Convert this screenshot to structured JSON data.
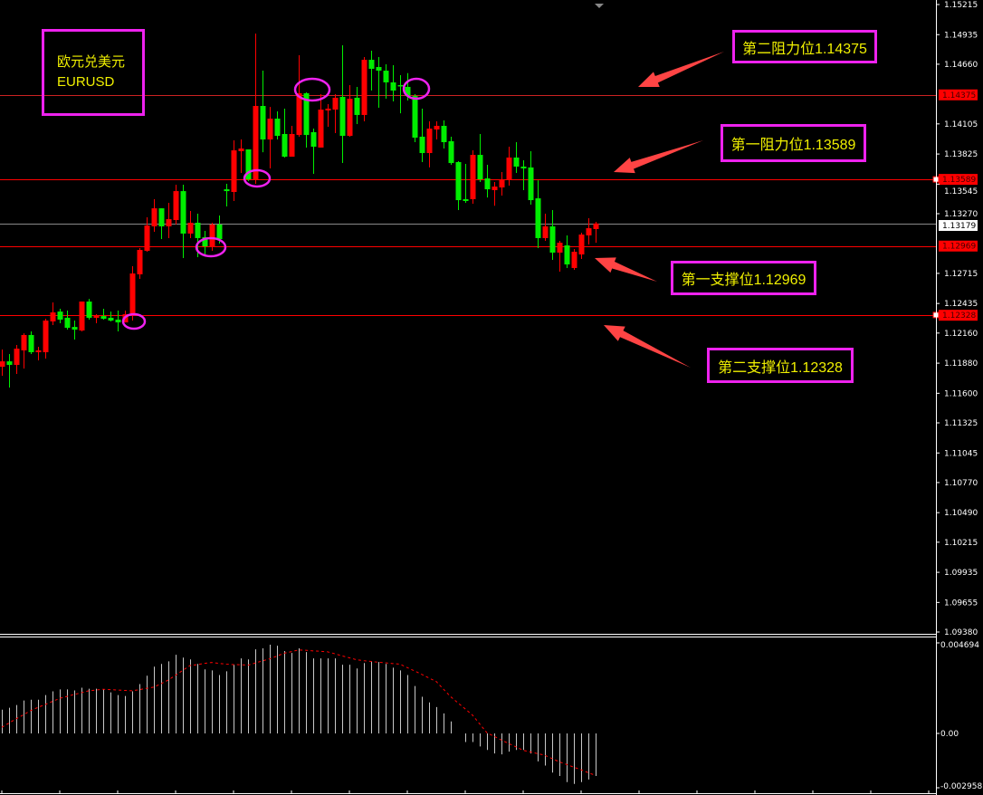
{
  "instrument": {
    "name_cn": "欧元兑美元",
    "symbol": "EURUSD"
  },
  "annotations": [
    {
      "label": "第二阻力位1.14375",
      "level": 1.14375
    },
    {
      "label": "第一阻力位1.13589",
      "level": 1.13589
    },
    {
      "label": "第一支撑位1.12969",
      "level": 1.12969
    },
    {
      "label": "第二支撑位1.12328",
      "level": 1.12328
    }
  ],
  "colors": {
    "background": "#000000",
    "bullish": "#ff0000",
    "bearish": "#00ee00",
    "level_line": "#ff0000",
    "annotation_border": "#ee22ee",
    "annotation_text": "#f0f000",
    "arrow": "#ff4444",
    "macd_histogram": "#c8c8c8",
    "macd_signal": "#ff0000"
  },
  "chart_data": [
    {
      "type": "candlestick",
      "title": "",
      "ylim": [
        1.0938,
        1.15215
      ],
      "grid": false,
      "price_ticks": [
        "1.15215",
        "1.14935",
        "1.14660",
        "1.14105",
        "1.13825",
        "1.13545",
        "1.13270",
        "1.12715",
        "1.12435",
        "1.12160",
        "1.11880",
        "1.11600",
        "1.11325",
        "1.11045",
        "1.10770",
        "1.10490",
        "1.10215",
        "1.09935",
        "1.09655",
        "1.09380"
      ],
      "highlight_labels": [
        {
          "text": "1.14375",
          "value": 1.14375,
          "style": "red"
        },
        {
          "text": "1.13589",
          "value": 1.13589,
          "style": "red"
        },
        {
          "text": "1.13179",
          "value": 1.13179,
          "style": "current"
        },
        {
          "text": "1.12969",
          "value": 1.12969,
          "style": "red"
        },
        {
          "text": "1.12328",
          "value": 1.12328,
          "style": "red"
        }
      ],
      "hlines": [
        {
          "value": 1.14375,
          "color": "#cc2222"
        },
        {
          "value": 1.13589,
          "color": "#ff0000"
        },
        {
          "value": 1.13179,
          "color": "#888888"
        },
        {
          "value": 1.12969,
          "color": "#ff0000"
        },
        {
          "value": 1.12328,
          "color": "#ff0000"
        }
      ],
      "ohlc": [
        [
          1.11847,
          1.12007,
          1.11763,
          1.11897
        ],
        [
          1.11897,
          1.11965,
          1.11653,
          1.11864
        ],
        [
          1.11864,
          1.12049,
          1.1178,
          1.12015
        ],
        [
          1.11999,
          1.12158,
          1.1183,
          1.12142
        ],
        [
          1.12142,
          1.12175,
          1.11965,
          1.11982
        ],
        [
          1.11982,
          1.12032,
          1.11906,
          1.11999
        ],
        [
          1.11982,
          1.12293,
          1.11923,
          1.12276
        ],
        [
          1.12268,
          1.12445,
          1.12234,
          1.12352
        ],
        [
          1.1236,
          1.12386,
          1.12251,
          1.12285
        ],
        [
          1.12302,
          1.12369,
          1.12192,
          1.12209
        ],
        [
          1.12217,
          1.12276,
          1.121,
          1.12192
        ],
        [
          1.12184,
          1.12453,
          1.12175,
          1.12453
        ],
        [
          1.12453,
          1.12478,
          1.12285,
          1.12302
        ],
        [
          1.12302,
          1.12335,
          1.12251,
          1.12327
        ],
        [
          1.12318,
          1.12386,
          1.12285,
          1.12293
        ],
        [
          1.12302,
          1.1236,
          1.12268,
          1.12276
        ],
        [
          1.12285,
          1.12369,
          1.12175,
          1.12259
        ],
        [
          1.12259,
          1.12369,
          1.12259,
          1.12335
        ],
        [
          1.12344,
          1.12782,
          1.12276,
          1.12714
        ],
        [
          1.12706,
          1.1295,
          1.12664,
          1.12933
        ],
        [
          1.12925,
          1.13236,
          1.12916,
          1.1316
        ],
        [
          1.13152,
          1.13405,
          1.13102,
          1.1332
        ],
        [
          1.1332,
          1.1332,
          1.13034,
          1.13152
        ],
        [
          1.13152,
          1.13371,
          1.13043,
          1.13219
        ],
        [
          1.13211,
          1.13539,
          1.13169,
          1.1348
        ],
        [
          1.1348,
          1.13539,
          1.12857,
          1.13085
        ],
        [
          1.13085,
          1.13295,
          1.13043,
          1.13186
        ],
        [
          1.13186,
          1.1327,
          1.12866,
          1.13043
        ],
        [
          1.13051,
          1.1311,
          1.12891,
          1.12967
        ],
        [
          1.12967,
          1.13186,
          1.12925,
          1.13169
        ],
        [
          1.13169,
          1.13253,
          1.12992,
          1.13034
        ],
        [
          1.13497,
          1.13548,
          1.13337,
          1.1348
        ],
        [
          1.13472,
          1.13952,
          1.13388,
          1.13859
        ],
        [
          1.13851,
          1.1396,
          1.13649,
          1.13876
        ],
        [
          1.13868,
          1.13868,
          1.13573,
          1.1359
        ],
        [
          1.1359,
          1.14945,
          1.13548,
          1.14272
        ],
        [
          1.14272,
          1.146,
          1.13842,
          1.1396
        ],
        [
          1.1396,
          1.14263,
          1.13691,
          1.14154
        ],
        [
          1.14154,
          1.14221,
          1.1396,
          1.13994
        ],
        [
          1.14011,
          1.14247,
          1.13792,
          1.138
        ],
        [
          1.138,
          1.14087,
          1.138,
          1.14011
        ],
        [
          1.14002,
          1.14743,
          1.13986,
          1.1439
        ],
        [
          1.1439,
          1.14398,
          1.13885,
          1.14002
        ],
        [
          1.14028,
          1.14061,
          1.1364,
          1.13893
        ],
        [
          1.13885,
          1.14381,
          1.13885,
          1.14238
        ],
        [
          1.1423,
          1.14289,
          1.14078,
          1.14247
        ],
        [
          1.14238,
          1.14381,
          1.14019,
          1.14348
        ],
        [
          1.14356,
          1.14836,
          1.13741,
          1.13994
        ],
        [
          1.13994,
          1.14466,
          1.13986,
          1.14339
        ],
        [
          1.14348,
          1.14449,
          1.14104,
          1.14188
        ],
        [
          1.14188,
          1.14727,
          1.14129,
          1.14701
        ],
        [
          1.14701,
          1.14786,
          1.14415,
          1.14617
        ],
        [
          1.14634,
          1.14727,
          1.14255,
          1.146
        ],
        [
          1.146,
          1.14659,
          1.14339,
          1.14491
        ],
        [
          1.14491,
          1.14651,
          1.14314,
          1.14415
        ],
        [
          1.14466,
          1.14558,
          1.14204,
          1.14457
        ],
        [
          1.14449,
          1.14577,
          1.14322,
          1.14364
        ],
        [
          1.14364,
          1.14381,
          1.13935,
          1.13977
        ],
        [
          1.13986,
          1.14247,
          1.1375,
          1.13834
        ],
        [
          1.13834,
          1.14129,
          1.137,
          1.14061
        ],
        [
          1.14053,
          1.14129,
          1.1396,
          1.14087
        ],
        [
          1.14087,
          1.14137,
          1.13876,
          1.13935
        ],
        [
          1.13944,
          1.13986,
          1.13725,
          1.13741
        ],
        [
          1.1375,
          1.13758,
          1.13304,
          1.13396
        ],
        [
          1.13405,
          1.13733,
          1.13371,
          1.13388
        ],
        [
          1.13405,
          1.13859,
          1.13363,
          1.13817
        ],
        [
          1.13817,
          1.14011,
          1.13565,
          1.1359
        ],
        [
          1.13598,
          1.13725,
          1.13421,
          1.13497
        ],
        [
          1.13489,
          1.13565,
          1.13344,
          1.13522
        ],
        [
          1.13514,
          1.13657,
          1.13438,
          1.1359
        ],
        [
          1.1359,
          1.13893,
          1.13531,
          1.13792
        ],
        [
          1.13792,
          1.13935,
          1.13649,
          1.13708
        ],
        [
          1.13708,
          1.13767,
          1.13489,
          1.13691
        ],
        [
          1.137,
          1.13851,
          1.13354,
          1.13396
        ],
        [
          1.13413,
          1.13581,
          1.1295,
          1.13043
        ],
        [
          1.13043,
          1.1327,
          1.13017,
          1.13152
        ],
        [
          1.13152,
          1.13304,
          1.12841,
          1.12908
        ],
        [
          1.12908,
          1.13017,
          1.12731,
          1.13
        ],
        [
          1.12975,
          1.13068,
          1.12765,
          1.12798
        ],
        [
          1.12765,
          1.12942,
          1.12748,
          1.12916
        ],
        [
          1.12891,
          1.13093,
          1.12849,
          1.13076
        ],
        [
          1.13068,
          1.13228,
          1.12984,
          1.13135
        ],
        [
          1.13127,
          1.13194,
          1.13,
          1.13179
        ]
      ]
    },
    {
      "type": "bar",
      "title": "",
      "ylim": [
        -0.002958,
        0.004694
      ],
      "axis_labels": [
        "0.004694",
        "0.00",
        "-0.002958"
      ],
      "histogram": [
        0.00123,
        0.00133,
        0.00147,
        0.00171,
        0.00175,
        0.00175,
        0.00199,
        0.00218,
        0.00228,
        0.00228,
        0.00223,
        0.00237,
        0.00232,
        0.00232,
        0.00228,
        0.00213,
        0.00199,
        0.00194,
        0.00218,
        0.00256,
        0.00299,
        0.00346,
        0.0036,
        0.00374,
        0.00408,
        0.00393,
        0.00384,
        0.0036,
        0.00332,
        0.00327,
        0.00303,
        0.00322,
        0.00356,
        0.00389,
        0.00384,
        0.00436,
        0.00441,
        0.0046,
        0.00455,
        0.00427,
        0.00417,
        0.00441,
        0.00422,
        0.00389,
        0.00389,
        0.00389,
        0.00389,
        0.00356,
        0.00356,
        0.00337,
        0.00365,
        0.00374,
        0.0037,
        0.0036,
        0.00341,
        0.00327,
        0.00303,
        0.00246,
        0.0019,
        0.00161,
        0.00137,
        0.00104,
        0.00062,
        0.0,
        -0.00047,
        -0.00047,
        -0.00071,
        -0.0009,
        -0.00109,
        -0.00114,
        -0.00099,
        -0.0009,
        -0.0009,
        -0.00109,
        -0.00152,
        -0.00175,
        -0.00213,
        -0.00232,
        -0.00265,
        -0.00275,
        -0.00265,
        -0.00251,
        -0.00232
      ],
      "signal": [
        0.00032,
        0.00054,
        0.00076,
        0.00097,
        0.00119,
        0.00135,
        0.0015,
        0.00166,
        0.00182,
        0.00192,
        0.00202,
        0.00211,
        0.00221,
        0.00225,
        0.00229,
        0.00227,
        0.00225,
        0.00223,
        0.00221,
        0.00227,
        0.00234,
        0.0024,
        0.00258,
        0.00277,
        0.00302,
        0.00327,
        0.00352,
        0.00357,
        0.00363,
        0.00368,
        0.00363,
        0.00359,
        0.00357,
        0.00356,
        0.00354,
        0.00365,
        0.00376,
        0.00387,
        0.00401,
        0.00416,
        0.00424,
        0.00433,
        0.00431,
        0.00428,
        0.00426,
        0.00423,
        0.00413,
        0.00402,
        0.00392,
        0.00382,
        0.00377,
        0.00373,
        0.00369,
        0.00366,
        0.00362,
        0.00359,
        0.00341,
        0.00324,
        0.00306,
        0.00287,
        0.00269,
        0.00229,
        0.0019,
        0.00158,
        0.00127,
        0.00095,
        0.00049,
        3e-05,
        -0.00016,
        -0.00036,
        -0.00055,
        -0.00073,
        -0.00092,
        -0.00101,
        -0.0011,
        -0.00119,
        -0.00137,
        -0.00155,
        -0.00169,
        -0.00184,
        -0.00198,
        -0.00214,
        -0.00229
      ]
    }
  ]
}
